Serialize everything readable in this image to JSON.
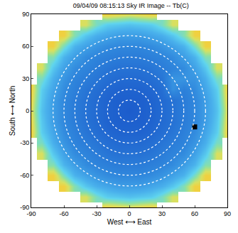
{
  "chart_data": {
    "type": "heatmap",
    "title": "09/04/09 08:15:13 Sky IR Image -- Tb(C)",
    "x_label": "West ⟷ East",
    "y_label": "South ⟷ North",
    "x": [
      -90,
      -80,
      -70,
      -60,
      -50,
      -40,
      -30,
      -20,
      -10,
      0,
      10,
      20,
      30,
      40,
      50,
      60,
      70,
      80,
      90
    ],
    "y": [
      -90,
      -80,
      -70,
      -60,
      -50,
      -40,
      -30,
      -20,
      -10,
      0,
      10,
      20,
      30,
      40,
      50,
      60,
      70,
      80,
      90
    ],
    "z": [
      [
        null,
        null,
        null,
        null,
        null,
        null,
        null,
        -3,
        -4,
        -5,
        -4,
        -3,
        null,
        null,
        null,
        null,
        null,
        null,
        null
      ],
      [
        null,
        null,
        null,
        null,
        null,
        -6,
        -12,
        -16,
        -17,
        -18,
        -17,
        -16,
        -12,
        -6,
        null,
        null,
        null,
        null,
        null
      ],
      [
        null,
        null,
        null,
        -3,
        -11,
        -17,
        -21,
        -23,
        -25,
        -25,
        -25,
        -23,
        -21,
        -17,
        -11,
        -3,
        null,
        null,
        null
      ],
      [
        null,
        null,
        -3,
        -12,
        -20,
        -24,
        -27,
        -29,
        -30,
        -30,
        -30,
        -29,
        -27,
        -24,
        -20,
        -12,
        -3,
        null,
        null
      ],
      [
        null,
        null,
        -11,
        -20,
        -25,
        -29,
        -31,
        -32,
        -33,
        -33,
        -33,
        -32,
        -31,
        -29,
        -25,
        -20,
        -11,
        null,
        null
      ],
      [
        null,
        -6,
        -17,
        -24,
        -29,
        -31,
        -33,
        -35,
        -36,
        -36,
        -36,
        -35,
        -33,
        -31,
        -29,
        -24,
        -17,
        -6,
        null
      ],
      [
        null,
        -12,
        -21,
        -27,
        -31,
        -33,
        -35,
        -37,
        -38,
        -38,
        -38,
        -37,
        -35,
        -33,
        -31,
        -27,
        -21,
        -12,
        null
      ],
      [
        -3,
        -16,
        -23,
        -29,
        -32,
        -35,
        -37,
        -39,
        -40,
        -40,
        -40,
        -39,
        -37,
        -35,
        -32,
        -29,
        -23,
        -16,
        -3
      ],
      [
        -4,
        -17,
        -25,
        -30,
        -33,
        -36,
        -38,
        -40,
        -41,
        -41,
        -41,
        -40,
        -38,
        -36,
        -33,
        -30,
        -25,
        -17,
        -4
      ],
      [
        -5,
        -18,
        -25,
        -30,
        -33,
        -36,
        -38,
        -40,
        -41,
        -42,
        -41,
        -40,
        -38,
        -36,
        -33,
        -30,
        -25,
        -18,
        -5
      ],
      [
        -4,
        -17,
        -25,
        -30,
        -33,
        -36,
        -38,
        -40,
        -41,
        -41,
        -41,
        -40,
        -38,
        -36,
        -33,
        -30,
        -25,
        -17,
        -4
      ],
      [
        -3,
        -16,
        -23,
        -29,
        -32,
        -35,
        -37,
        -39,
        -40,
        -40,
        -40,
        -39,
        -37,
        -28,
        -32,
        -29,
        -23,
        -16,
        -3
      ],
      [
        null,
        -12,
        -21,
        -27,
        -31,
        -33,
        -35,
        -37,
        -38,
        -38,
        -38,
        -37,
        -35,
        -27,
        -27,
        -27,
        -21,
        -12,
        null
      ],
      [
        null,
        -6,
        -17,
        -24,
        -29,
        -31,
        -33,
        -35,
        -36,
        -36,
        -36,
        -35,
        -33,
        -31,
        -29,
        -24,
        -17,
        -6,
        null
      ],
      [
        null,
        null,
        -11,
        -20,
        -25,
        -29,
        -31,
        -32,
        -33,
        -33,
        -33,
        -32,
        -31,
        -29,
        -25,
        -20,
        -11,
        null,
        null
      ],
      [
        null,
        null,
        -3,
        -12,
        -20,
        -24,
        -27,
        -29,
        -30,
        -30,
        -30,
        -29,
        -27,
        -24,
        -20,
        -12,
        -3,
        null,
        null
      ],
      [
        null,
        null,
        null,
        -3,
        -11,
        -17,
        -21,
        -23,
        -25,
        -25,
        -25,
        -23,
        -21,
        -17,
        -11,
        -3,
        null,
        null,
        null
      ],
      [
        null,
        null,
        null,
        null,
        null,
        -6,
        -12,
        -16,
        -17,
        -18,
        -17,
        -16,
        -12,
        -6,
        null,
        null,
        null,
        null,
        null
      ],
      [
        null,
        null,
        null,
        null,
        null,
        null,
        null,
        -3,
        -4,
        -5,
        -4,
        -3,
        null,
        null,
        null,
        null,
        null,
        null,
        null
      ]
    ],
    "xlim": [
      -90,
      90
    ],
    "ylim": [
      -90,
      90
    ],
    "xticks": [
      -90,
      -60,
      -30,
      0,
      30,
      60,
      90
    ],
    "yticks": [
      -90,
      -60,
      -30,
      0,
      30,
      60,
      90
    ],
    "rings": [
      10,
      20,
      30,
      40,
      50,
      60,
      70
    ],
    "spot": {
      "x": 60,
      "y": -15,
      "color": "#000000"
    },
    "grid": false
  }
}
